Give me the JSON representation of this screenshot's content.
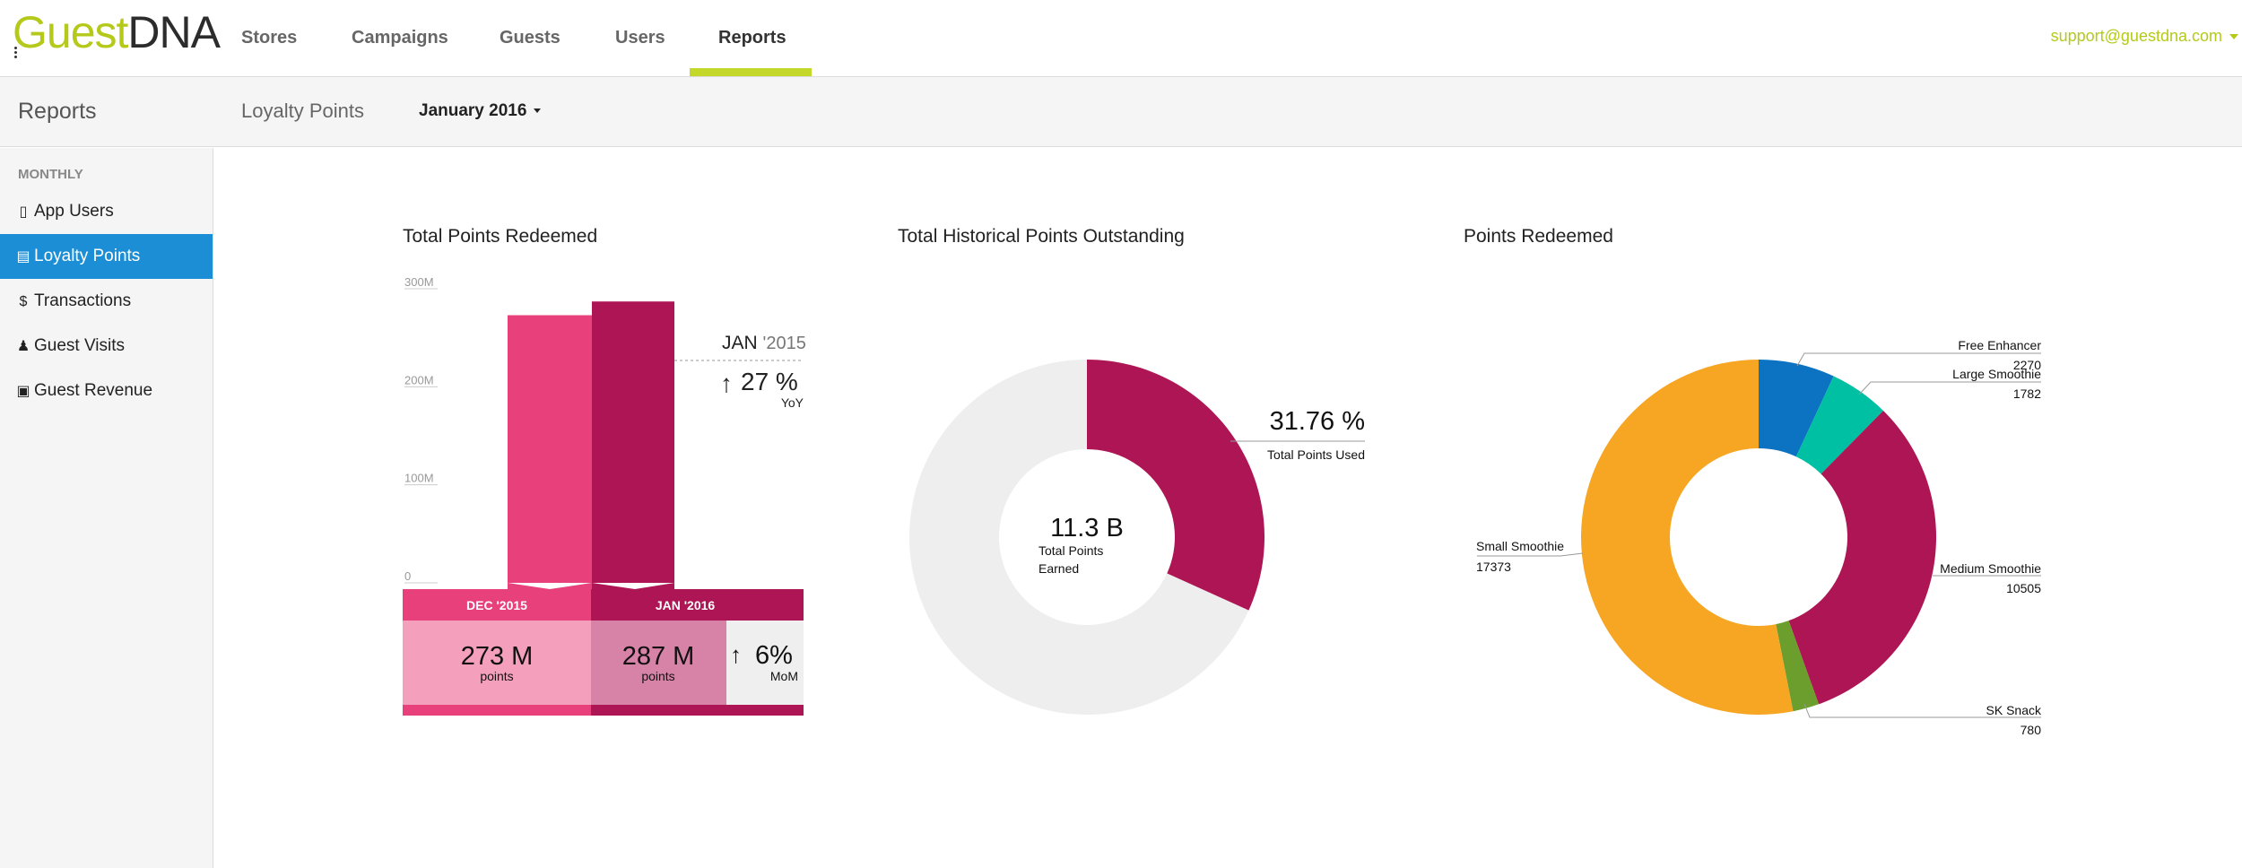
{
  "app": {
    "logo_part1": "Guest",
    "logo_part2": "DNA",
    "user_email": "support@guestdna.com"
  },
  "nav": {
    "items": [
      {
        "label": "Stores"
      },
      {
        "label": "Campaigns"
      },
      {
        "label": "Guests"
      },
      {
        "label": "Users"
      },
      {
        "label": "Reports"
      }
    ],
    "active": "Reports"
  },
  "subheader": {
    "title": "Reports",
    "section": "Loyalty Points",
    "month": "January 2016"
  },
  "sidebar": {
    "heading": "MONTHLY",
    "items": [
      {
        "label": "App Users",
        "icon": "phone-icon"
      },
      {
        "label": "Loyalty Points",
        "icon": "card-icon",
        "active": true
      },
      {
        "label": "Transactions",
        "icon": "dollar-icon"
      },
      {
        "label": "Guest Visits",
        "icon": "person-icon"
      },
      {
        "label": "Guest Revenue",
        "icon": "cash-icon"
      }
    ]
  },
  "colors": {
    "accent": "#c3d82b",
    "brand_green": "#b5c91a",
    "selected_blue": "#1c8ed6",
    "pink": "#e8407a",
    "magenta": "#ae1554",
    "orange": "#f6a623",
    "blue": "#0b73c1",
    "teal": "#00c0a4",
    "green": "#6c9e2d",
    "light_gray": "#eeeeee"
  },
  "chart_data": [
    {
      "type": "bar",
      "title": "Total Points Redeemed",
      "categories": [
        "DEC '2015",
        "JAN '2016"
      ],
      "values": [
        273,
        287
      ],
      "unit": "M",
      "ylim": [
        0,
        300
      ],
      "yticks": [
        "0",
        "100M",
        "200M",
        "300M"
      ],
      "values_text": [
        "273 M",
        "287 M"
      ],
      "values_unit": "points",
      "yoy_label": "JAN",
      "yoy_year": "'2015",
      "yoy_change": "27 %",
      "yoy_label_short": "YoY",
      "mom_change": "6%",
      "mom_label": "MoM"
    },
    {
      "type": "pie",
      "title": "Total Historical Points Outstanding",
      "center_value": "11.3 B",
      "center_label_line1": "Total Points",
      "center_label_line2": "Earned",
      "used_percent": 31.76,
      "used_percent_text": "31.76 %",
      "used_label": "Total Points Used"
    },
    {
      "type": "pie",
      "title": "Points Redeemed",
      "slices": [
        {
          "label": "Free Enhancer",
          "value": 2270,
          "value_text": "2270",
          "color": "#0b73c1"
        },
        {
          "label": "Large Smoothie",
          "value": 1782,
          "value_text": "1782",
          "color": "#00c0a4"
        },
        {
          "label": "Medium Smoothie",
          "value": 10505,
          "value_text": "10505",
          "color": "#ae1554"
        },
        {
          "label": "SK Snack",
          "value": 780,
          "value_text": "780",
          "color": "#6c9e2d"
        },
        {
          "label": "Small Smoothie",
          "value": 17373,
          "value_text": "17373",
          "color": "#f6a623"
        }
      ]
    }
  ]
}
